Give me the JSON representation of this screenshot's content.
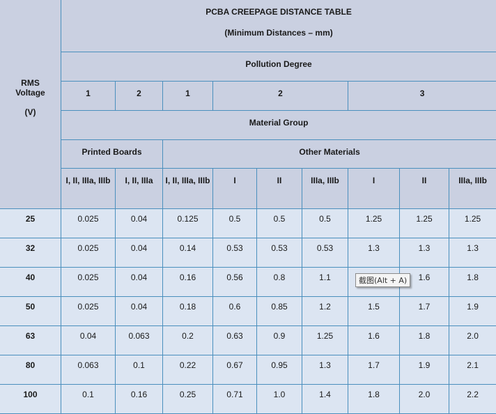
{
  "title": "PCBA CREEPAGE DISTANCE TABLE",
  "subtitle": "(Minimum Distances – mm)",
  "rms_voltage_label": [
    "RMS",
    "Voltage",
    "(V)"
  ],
  "pollution_degree_label": "Pollution Degree",
  "pollution_degrees": [
    "1",
    "2",
    "1",
    "2",
    "3"
  ],
  "material_group_label": "Material Group",
  "printed_boards_label": "Printed Boards",
  "other_materials_label": "Other Materials",
  "material_columns": [
    "I, II, IIIa, IIIb",
    "I, II, IIIa",
    "I, II, IIIa, IIIb",
    "I",
    "II",
    "IIIa, IIIb",
    "I",
    "II",
    "IIIa, IIIb"
  ],
  "rows": [
    {
      "v": "25",
      "vals": [
        "0.025",
        "0.04",
        "0.125",
        "0.5",
        "0.5",
        "0.5",
        "1.25",
        "1.25",
        "1.25"
      ]
    },
    {
      "v": "32",
      "vals": [
        "0.025",
        "0.04",
        "0.14",
        "0.53",
        "0.53",
        "0.53",
        "1.3",
        "1.3",
        "1.3"
      ]
    },
    {
      "v": "40",
      "vals": [
        "0.025",
        "0.04",
        "0.16",
        "0.56",
        "0.8",
        "1.1",
        "",
        "1.6",
        "1.8"
      ]
    },
    {
      "v": "50",
      "vals": [
        "0.025",
        "0.04",
        "0.18",
        "0.6",
        "0.85",
        "1.2",
        "1.5",
        "1.7",
        "1.9"
      ]
    },
    {
      "v": "63",
      "vals": [
        "0.04",
        "0.063",
        "0.2",
        "0.63",
        "0.9",
        "1.25",
        "1.6",
        "1.8",
        "2.0"
      ]
    },
    {
      "v": "80",
      "vals": [
        "0.063",
        "0.1",
        "0.22",
        "0.67",
        "0.95",
        "1.3",
        "1.7",
        "1.9",
        "2.1"
      ]
    },
    {
      "v": "100",
      "vals": [
        "0.1",
        "0.16",
        "0.25",
        "0.71",
        "1.0",
        "1.4",
        "1.8",
        "2.0",
        "2.2"
      ]
    }
  ],
  "tooltip": "截图(Alt + A)",
  "colors": {
    "header_bg": "#cad0e1",
    "cell_bg": "#dce5f2",
    "border": "#4a8fbd"
  }
}
